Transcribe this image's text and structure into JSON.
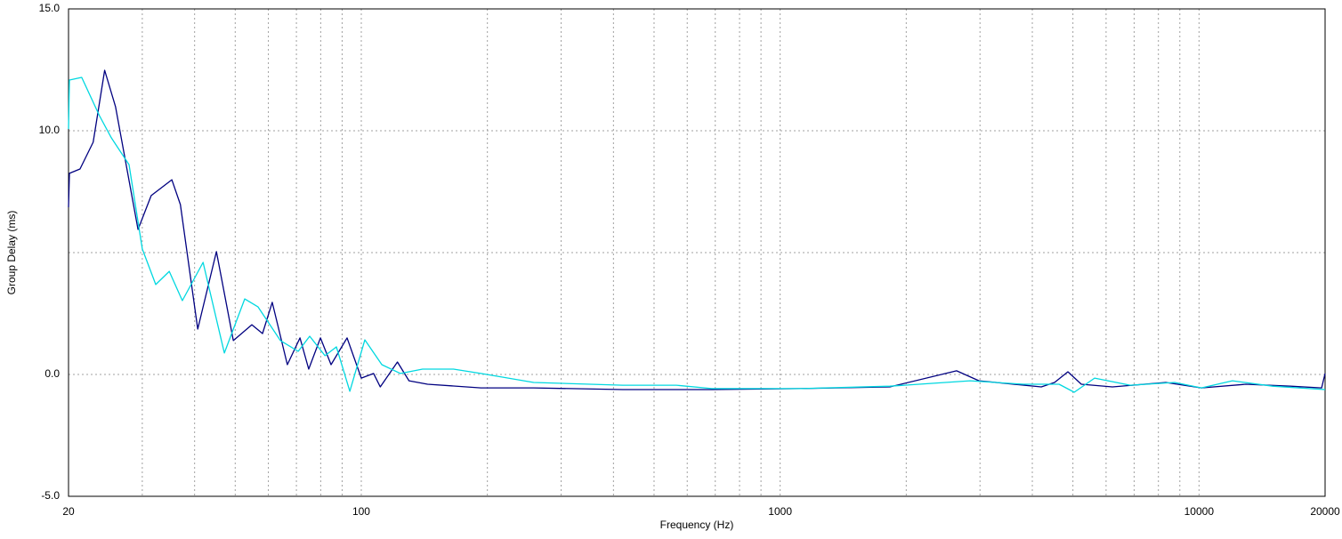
{
  "chart_data": {
    "type": "line",
    "xlabel": "Frequency (Hz)",
    "ylabel": "Group Delay (ms)",
    "xscale": "log",
    "xlim": [
      20,
      20000
    ],
    "ylim": [
      -5,
      15
    ],
    "xticks": [
      20,
      100,
      1000,
      10000,
      20000
    ],
    "xgrid": [
      30,
      40,
      50,
      60,
      70,
      80,
      90,
      200,
      300,
      400,
      500,
      600,
      700,
      800,
      900,
      2000,
      3000,
      4000,
      5000,
      6000,
      7000,
      8000,
      9000
    ],
    "yticks": [
      {
        "value": -5,
        "label": "-5.0"
      },
      {
        "value": 0,
        "label": "0.0"
      },
      {
        "value": 5,
        "label": null
      },
      {
        "value": 10,
        "label": "10.0"
      },
      {
        "value": 15,
        "label": "15.0"
      }
    ],
    "grid": true,
    "series": [
      {
        "color": "#000080",
        "x": [
          20,
          20.1,
          21.3,
          22.9,
          24.4,
          25.9,
          29.3,
          31.5,
          35.3,
          37.0,
          40.7,
          45.1,
          49.5,
          54.8,
          58.1,
          61.3,
          66.6,
          71.4,
          74.9,
          79.9,
          84.7,
          92.5,
          100,
          107,
          111,
          122,
          130,
          144,
          193,
          258,
          421,
          687,
          1121,
          1828,
          2638,
          2983,
          4203,
          4520,
          4865,
          5236,
          6211,
          8331,
          10130,
          12940,
          16530,
          19620,
          20000
        ],
        "values": [
          6.86,
          8.25,
          8.43,
          9.53,
          12.48,
          10.99,
          5.95,
          7.34,
          7.99,
          6.97,
          1.86,
          5.04,
          1.39,
          2.04,
          1.68,
          2.96,
          0.4,
          1.5,
          0.22,
          1.5,
          0.4,
          1.5,
          -0.15,
          0.04,
          -0.51,
          0.51,
          -0.26,
          -0.4,
          -0.55,
          -0.55,
          -0.62,
          -0.62,
          -0.58,
          -0.51,
          0.15,
          -0.26,
          -0.51,
          -0.33,
          0.11,
          -0.4,
          -0.51,
          -0.33,
          -0.55,
          -0.4,
          -0.48,
          -0.55,
          0.04
        ]
      },
      {
        "color": "#00d8e0",
        "x": [
          20,
          20.1,
          21.5,
          23.7,
          25.3,
          27.9,
          30.0,
          32.3,
          34.8,
          37.4,
          41.9,
          47.1,
          52.7,
          56.7,
          64.1,
          70.7,
          75.3,
          81.9,
          87.2,
          93.9,
          102,
          112,
          124,
          140,
          166,
          193,
          258,
          421,
          565,
          687,
          1121,
          1828,
          2841,
          3811,
          4634,
          5036,
          5632,
          6850,
          8750,
          10130,
          12020,
          14990,
          20000
        ],
        "values": [
          10.07,
          12.08,
          12.19,
          10.62,
          9.71,
          8.61,
          5.15,
          3.69,
          4.23,
          3.03,
          4.6,
          0.88,
          3.1,
          2.77,
          1.39,
          0.95,
          1.57,
          0.77,
          1.13,
          -0.69,
          1.42,
          0.4,
          0.04,
          0.22,
          0.22,
          0.04,
          -0.33,
          -0.44,
          -0.44,
          -0.58,
          -0.58,
          -0.48,
          -0.26,
          -0.4,
          -0.4,
          -0.73,
          -0.15,
          -0.44,
          -0.33,
          -0.55,
          -0.26,
          -0.48,
          -0.62
        ]
      }
    ]
  }
}
